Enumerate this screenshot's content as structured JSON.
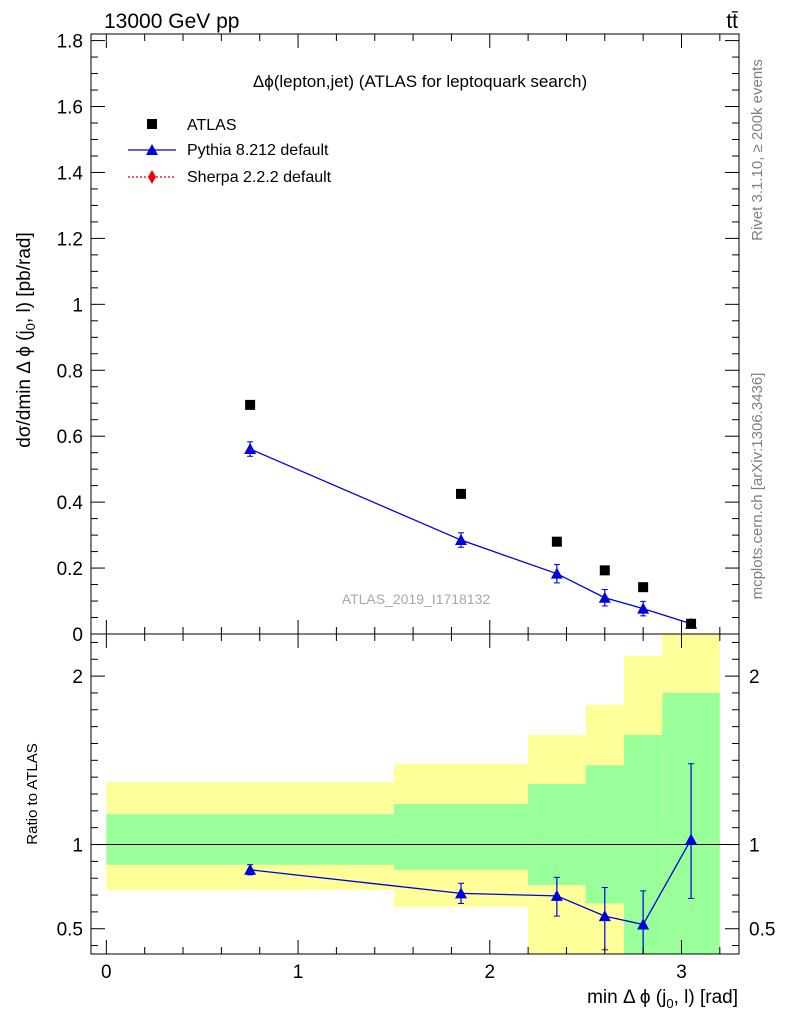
{
  "header": {
    "energy_label": "13000 GeV pp",
    "process_label": "tt̄"
  },
  "side_labels": {
    "rivet": "Rivet 3.1.10, ≥ 200k events",
    "mcplots": "mcplots.cern.ch [arXiv:1306.3436]"
  },
  "watermark": "ATLAS_2019_I1718132",
  "colors": {
    "atlas": "#000000",
    "pythia": "#0000dd",
    "sherpa": "#ee0000",
    "band_inner": "#99ff99",
    "band_outer": "#ffff99"
  },
  "chart_data": [
    {
      "type": "scatter",
      "title": "Δϕ(lepton,jet) (ATLAS for leptoquark search)",
      "xlabel": "min Δ ϕ (j0, l) [rad]",
      "ylabel": "dσ/dmin Δ ϕ (j0, l) [pb/rad]",
      "xlim": [
        -0.08,
        3.3
      ],
      "ylim": [
        0,
        1.82
      ],
      "yticks": [
        {
          "v": 0,
          "label": "0"
        },
        {
          "v": 0.2,
          "label": "0.2"
        },
        {
          "v": 0.4,
          "label": "0.4"
        },
        {
          "v": 0.6,
          "label": "0.6"
        },
        {
          "v": 0.8,
          "label": "0.8"
        },
        {
          "v": 1.0,
          "label": "1"
        },
        {
          "v": 1.2,
          "label": "1.2"
        },
        {
          "v": 1.4,
          "label": "1.4"
        },
        {
          "v": 1.6,
          "label": "1.6"
        },
        {
          "v": 1.8,
          "label": "1.8"
        }
      ],
      "legend": [
        "ATLAS",
        "Pythia 8.212 default",
        "Sherpa 2.2.2 default"
      ],
      "series": [
        {
          "name": "ATLAS",
          "marker": "square",
          "x": [
            0.75,
            1.85,
            2.35,
            2.6,
            2.8,
            3.05
          ],
          "y": [
            0.695,
            0.425,
            0.28,
            0.193,
            0.142,
            0.031
          ]
        },
        {
          "name": "Pythia 8.212 default",
          "marker": "triangle",
          "line": "solid",
          "x": [
            0.75,
            1.85,
            2.35,
            2.6,
            2.8,
            3.05
          ],
          "y": [
            0.561,
            0.285,
            0.183,
            0.11,
            0.077,
            0.031
          ],
          "err": [
            0.022,
            0.022,
            0.028,
            0.025,
            0.022,
            0.008
          ]
        }
      ]
    },
    {
      "type": "scatter",
      "xlabel": "min Δ ϕ (j0, l) [rad]",
      "ylabel": "Ratio to ATLAS",
      "xlim": [
        -0.08,
        3.3
      ],
      "ylim": [
        0.35,
        2.25
      ],
      "xticks": [
        {
          "v": 0,
          "label": "0"
        },
        {
          "v": 1,
          "label": "1"
        },
        {
          "v": 2,
          "label": "2"
        },
        {
          "v": 3,
          "label": "3"
        }
      ],
      "yticks": [
        {
          "v": 0.5,
          "label": "0.5"
        },
        {
          "v": 1,
          "label": "1"
        },
        {
          "v": 2,
          "label": "2"
        }
      ],
      "bands": [
        {
          "x0": 0.0,
          "x1": 1.5,
          "inner": [
            0.88,
            1.18
          ],
          "outer": [
            0.73,
            1.37
          ]
        },
        {
          "x0": 1.5,
          "x1": 2.2,
          "inner": [
            0.85,
            1.24
          ],
          "outer": [
            0.63,
            1.48
          ]
        },
        {
          "x0": 2.2,
          "x1": 2.5,
          "inner": [
            0.76,
            1.36
          ],
          "outer": [
            0.35,
            1.65
          ]
        },
        {
          "x0": 2.5,
          "x1": 2.7,
          "inner": [
            0.65,
            1.47
          ],
          "outer": [
            0.35,
            1.83
          ]
        },
        {
          "x0": 2.7,
          "x1": 2.9,
          "inner": [
            0.35,
            1.65
          ],
          "outer": [
            0.35,
            2.12
          ]
        },
        {
          "x0": 2.9,
          "x1": 3.2,
          "inner": [
            0.35,
            1.9
          ],
          "outer": [
            0.35,
            2.25
          ]
        }
      ],
      "series": [
        {
          "name": "Pythia 8.212 default",
          "marker": "triangle",
          "x": [
            0.75,
            1.85,
            2.35,
            2.6,
            2.8,
            3.05
          ],
          "y": [
            0.85,
            0.71,
            0.695,
            0.575,
            0.525,
            1.03
          ],
          "err_low": [
            0.03,
            0.06,
            0.12,
            0.2,
            0.19,
            0.35
          ],
          "err_high": [
            0.03,
            0.06,
            0.11,
            0.17,
            0.2,
            0.45
          ]
        }
      ]
    }
  ]
}
